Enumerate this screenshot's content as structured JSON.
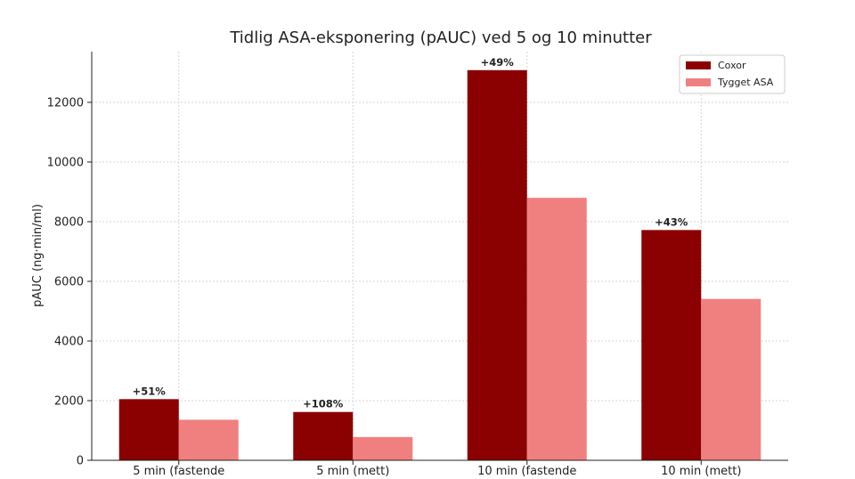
{
  "chart_data": {
    "type": "bar",
    "title": "Tidlig ASA-eksponering (pAUC) ved 5 og 10 minutter",
    "xlabel": "",
    "ylabel": "pAUC (ng·min/ml)",
    "categories": [
      "5 min (fastende",
      "5 min (mett)",
      "10 min (fastende",
      "10 min (mett)"
    ],
    "series": [
      {
        "name": "Coxor",
        "color": "#8b0000",
        "values": [
          2050,
          1620,
          13080,
          7720
        ]
      },
      {
        "name": "Tygget ASA",
        "color": "#f08080",
        "values": [
          1360,
          780,
          8800,
          5410
        ]
      }
    ],
    "annotations": [
      "+51%",
      "+108%",
      "+49%",
      "+43%"
    ],
    "ylim": [
      0,
      13700
    ],
    "yticks": [
      0,
      2000,
      4000,
      6000,
      8000,
      10000,
      12000
    ],
    "grid": true,
    "legend_position": "top-right"
  }
}
